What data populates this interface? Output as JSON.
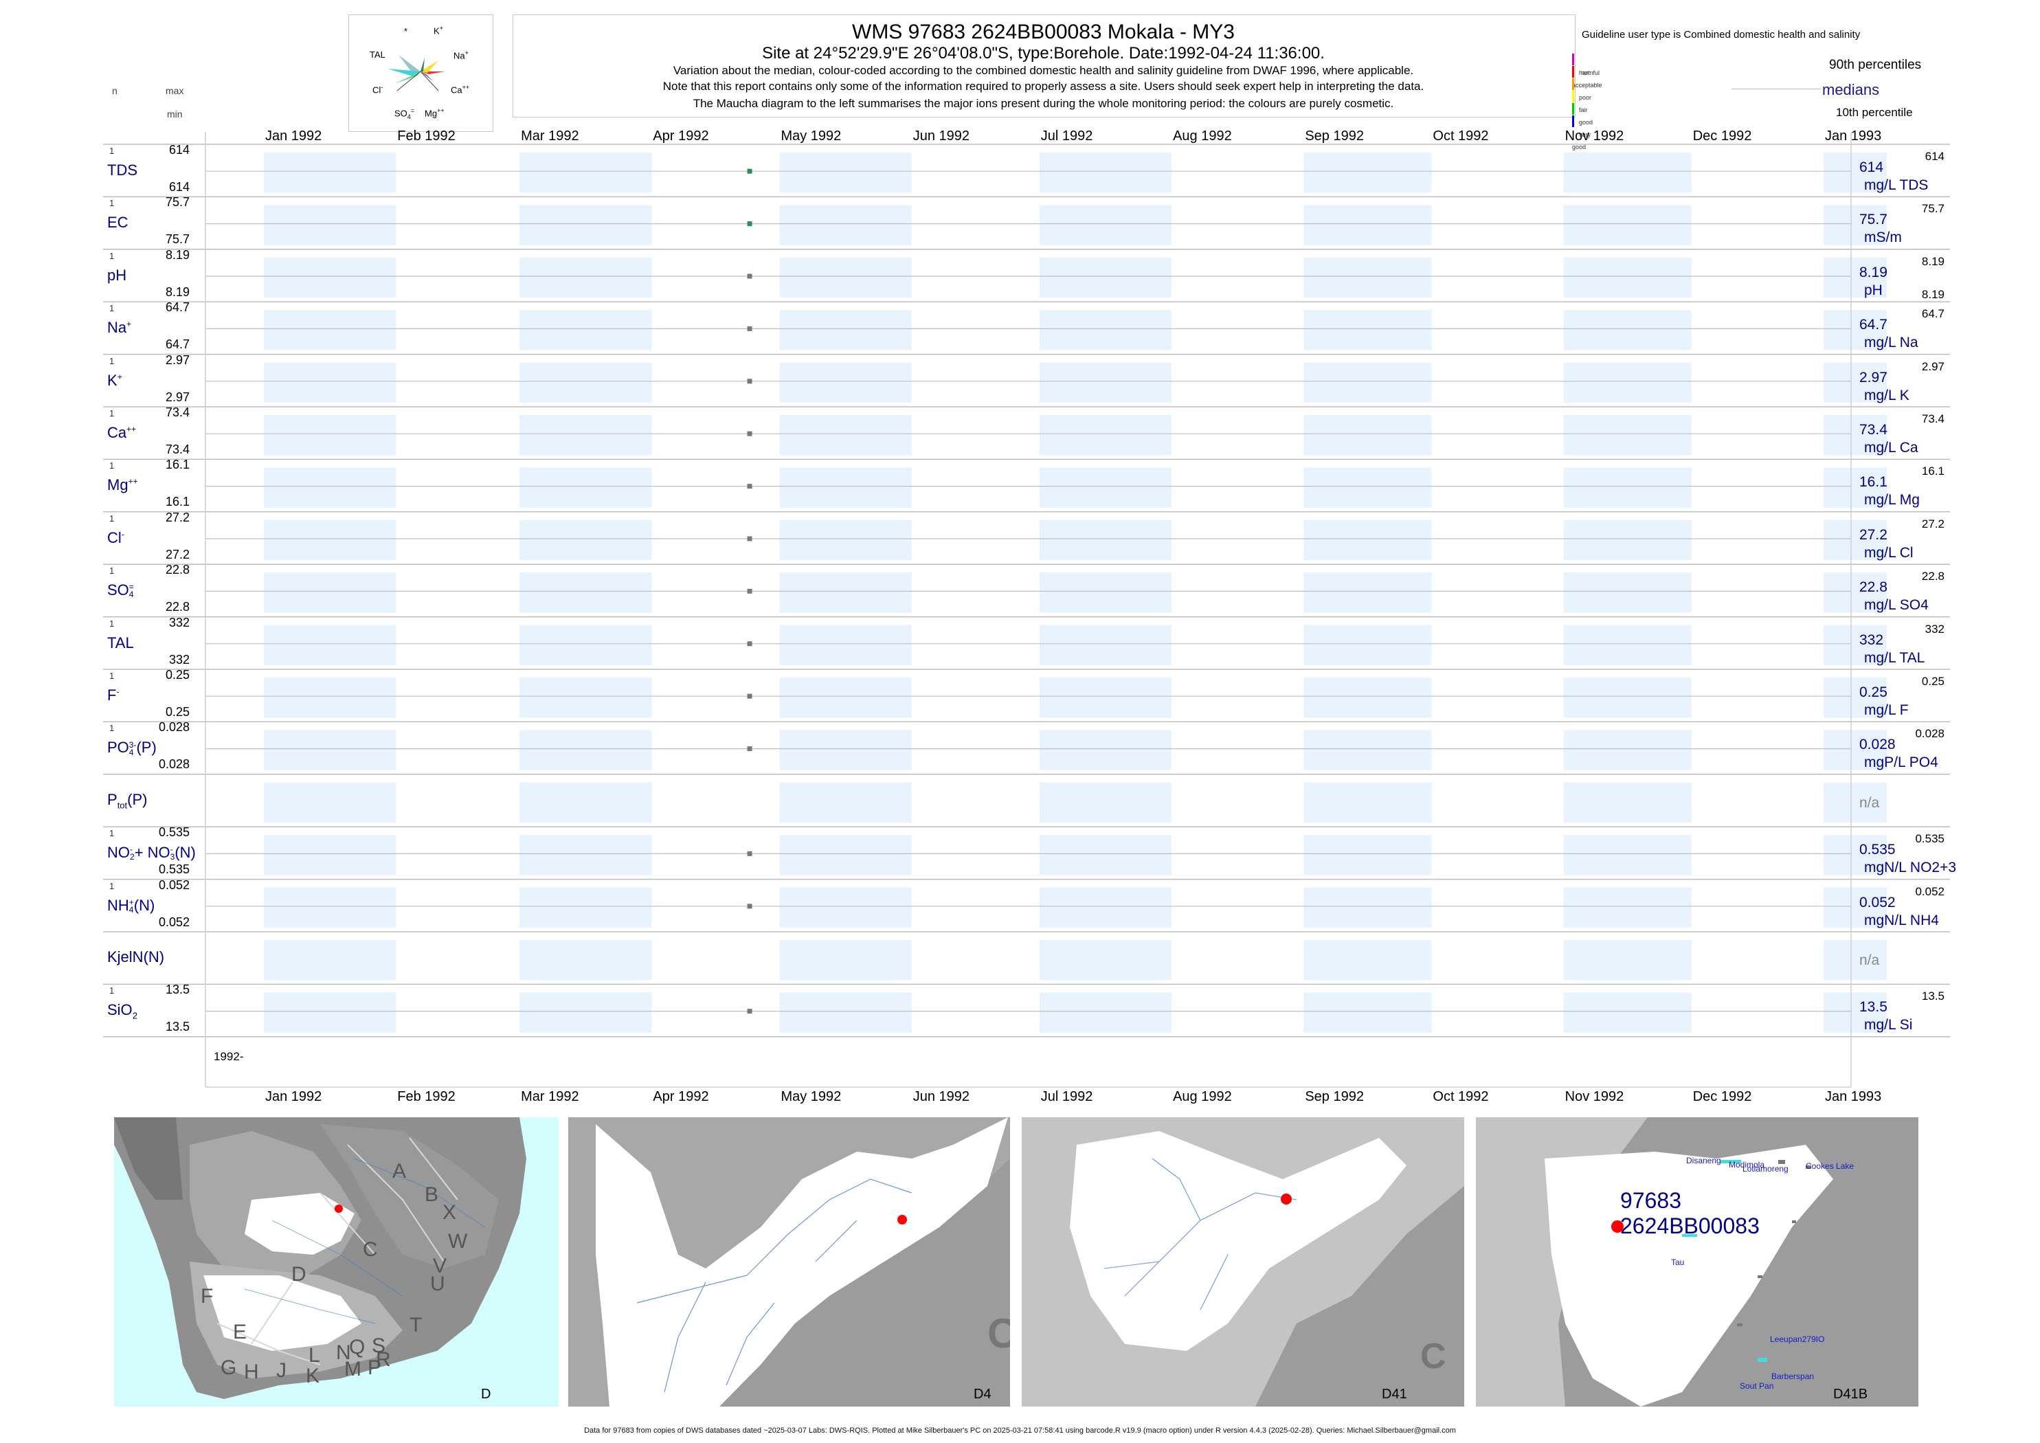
{
  "header": {
    "title": "WMS 97683 2624BB00083 Mokala - MY3",
    "subtitle": "Site at 24°52'29.9\"E 26°04'08.0\"S, type:Borehole. Date:1992-04-24 11:36:00.",
    "note1": "Variation about the median,  colour-coded according to the combined domestic health and salinity guideline from DWAF 1996, where applicable.",
    "note2": "Note that this report contains only some of the information required to properly assess a site. Users should seek expert help in interpreting the data.",
    "note3": "The Maucha diagram to the left summarises the major ions present during the whole monitoring period: the colours are purely cosmetic."
  },
  "maucha": {
    "labels": {
      "k": "K",
      "k_sup": "+",
      "star": "*",
      "tal": "TAL",
      "na": "Na",
      "na_sup": "+",
      "cl": "Cl",
      "cl_sup": "-",
      "ca": "Ca",
      "ca_sup": "++",
      "so4": "SO",
      "so4_sub": "4",
      "so4_sup": "=",
      "mg": "Mg",
      "mg_sup": "++"
    }
  },
  "left_header": {
    "n": "n",
    "max": "max",
    "min": "min"
  },
  "legend": {
    "guideline_title": "Guideline user type is Combined domestic health and salinity",
    "classes": [
      {
        "label": "harmful",
        "color": "#cc00cc"
      },
      {
        "label": "not acceptable",
        "color": "#ff0000"
      },
      {
        "label": "poor",
        "color": "#ff9900"
      },
      {
        "label": "fair",
        "color": "#ffff00"
      },
      {
        "label": "good",
        "color": "#00cc00"
      },
      {
        "label": "very good",
        "color": "#0000ff"
      }
    ],
    "p90": "90th percentiles",
    "median": "medians",
    "p10": "10th percentile"
  },
  "months": [
    "Jan 1992",
    "Feb 1992",
    "Mar 1992",
    "Apr 1992",
    "May 1992",
    "Jun 1992",
    "Jul 1992",
    "Aug 1992",
    "Sep 1992",
    "Oct 1992",
    "Nov 1992",
    "Dec 1992",
    "Jan 1993"
  ],
  "year_label": "1992-",
  "chart_data": {
    "type": "scatter",
    "x_range": [
      "1992-01-01",
      "1993-01-01"
    ],
    "sample_date": "1992-04-24",
    "parameters": [
      {
        "key": "TDS",
        "name": "TDS",
        "n": "1",
        "max": "614",
        "min": "614",
        "value": 614,
        "value_text": "614",
        "unit": "mg/L TDS",
        "small_max": "614",
        "color": "#2e8b57"
      },
      {
        "key": "EC",
        "name": "EC",
        "n": "1",
        "max": "75.7",
        "min": "75.7",
        "value": 75.7,
        "value_text": "75.7",
        "unit": "mS/m",
        "small_max": "75.7",
        "color": "#2e8b57"
      },
      {
        "key": "pH",
        "name": "pH",
        "n": "1",
        "max": "8.19",
        "min": "8.19",
        "value": 8.19,
        "value_text": "8.19",
        "unit": "pH",
        "small_max": "8.19",
        "small_min": "8.19",
        "color": "#777777"
      },
      {
        "key": "Na",
        "name": "Na",
        "sup": "+",
        "n": "1",
        "max": "64.7",
        "min": "64.7",
        "value": 64.7,
        "value_text": "64.7",
        "unit": "mg/L Na",
        "small_max": "64.7",
        "color": "#777777"
      },
      {
        "key": "K",
        "name": "K",
        "sup": "+",
        "n": "1",
        "max": "2.97",
        "min": "2.97",
        "value": 2.97,
        "value_text": "2.97",
        "unit": "mg/L K",
        "small_max": "2.97",
        "color": "#777777"
      },
      {
        "key": "Ca",
        "name": "Ca",
        "sup": "++",
        "n": "1",
        "max": "73.4",
        "min": "73.4",
        "value": 73.4,
        "value_text": "73.4",
        "unit": "mg/L Ca",
        "small_max": "73.4",
        "color": "#777777"
      },
      {
        "key": "Mg",
        "name": "Mg",
        "sup": "++",
        "n": "1",
        "max": "16.1",
        "min": "16.1",
        "value": 16.1,
        "value_text": "16.1",
        "unit": "mg/L Mg",
        "small_max": "16.1",
        "color": "#777777"
      },
      {
        "key": "Cl",
        "name": "Cl",
        "sup": "-",
        "n": "1",
        "max": "27.2",
        "min": "27.2",
        "value": 27.2,
        "value_text": "27.2",
        "unit": "mg/L Cl",
        "small_max": "27.2",
        "color": "#777777"
      },
      {
        "key": "SO4",
        "name": "SO",
        "sub": "4",
        "sup": "=",
        "n": "1",
        "max": "22.8",
        "min": "22.8",
        "value": 22.8,
        "value_text": "22.8",
        "unit": "mg/L SO4",
        "small_max": "22.8",
        "color": "#777777"
      },
      {
        "key": "TAL",
        "name": "TAL",
        "n": "1",
        "max": "332",
        "min": "332",
        "value": 332,
        "value_text": "332",
        "unit": "mg/L TAL",
        "small_max": "332",
        "color": "#777777"
      },
      {
        "key": "F",
        "name": "F",
        "sup": "-",
        "n": "1",
        "max": "0.25",
        "min": "0.25",
        "value": 0.25,
        "value_text": "0.25",
        "unit": "mg/L F",
        "small_max": "0.25",
        "color": "#777777"
      },
      {
        "key": "PO4",
        "name": "PO",
        "sub": "4",
        "sup": "3-",
        "suffix": "(P)",
        "n": "1",
        "max": "0.028",
        "min": "0.028",
        "value": 0.028,
        "value_text": "0.028",
        "unit": "mgP/L PO4",
        "small_max": "0.028",
        "color": "#777777"
      },
      {
        "key": "Ptot",
        "name": "P",
        "sub": "tot",
        "suffix": "(P)",
        "na": "n/a"
      },
      {
        "key": "NO23",
        "name": "NO",
        "sub": "2",
        "sup": "-",
        "name2": "+ NO",
        "sub2": "3",
        "sup2": "-",
        "suffix": "(N)",
        "n": "1",
        "max": "0.535",
        "min": "0.535",
        "value": 0.535,
        "value_text": "0.535",
        "unit": "mgN/L NO2+3",
        "small_max": "0.535",
        "color": "#777777"
      },
      {
        "key": "NH4",
        "name": "NH",
        "sub": "4",
        "sup": "+",
        "suffix": "(N)",
        "n": "1",
        "max": "0.052",
        "min": "0.052",
        "value": 0.052,
        "value_text": "0.052",
        "unit": "mgN/L NH4",
        "small_max": "0.052",
        "color": "#777777"
      },
      {
        "key": "KjelN",
        "name": "KjelN(N)",
        "na": "n/a"
      },
      {
        "key": "SiO2",
        "name": "SiO",
        "sub": "2",
        "n": "1",
        "max": "13.5",
        "min": "13.5",
        "value": 13.5,
        "value_text": "13.5",
        "unit": "mg/L Si",
        "small_max": "13.5",
        "color": "#777777"
      }
    ]
  },
  "maps": [
    {
      "label": "D",
      "regions": [
        "A",
        "B",
        "X",
        "C",
        "W",
        "V",
        "U",
        "T",
        "D",
        "F",
        "E",
        "G",
        "H",
        "J",
        "K",
        "L",
        "N",
        "M",
        "Q",
        "P",
        "S",
        "R"
      ]
    },
    {
      "label": "D4"
    },
    {
      "label": "D41",
      "corner": "C"
    },
    {
      "label": "D41B",
      "site_id": "97683",
      "site_code": "2624BB00083",
      "places": [
        "Disaneng",
        "Modimola",
        "Lotlamoreng",
        "Cookes Lake",
        "Tau",
        "Leeupan279IO",
        "Barberspan",
        "Sout Pan"
      ]
    }
  ],
  "footer": "Data for 97683 from copies of DWS databases dated ~2025-03-07 Labs: DWS-RQIS. Plotted at Mike Silberbauer's PC on 2025-03-21 07:58:41 using barcode.R v19.9 (macro option) under R version 4.4.3 (2025-02-28). Queries: Michael.Silberbauer@gmail.com"
}
